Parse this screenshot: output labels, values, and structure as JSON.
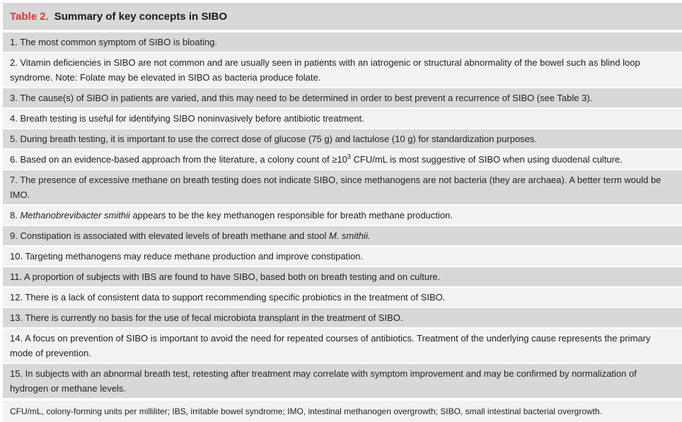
{
  "table": {
    "label": "Table 2.",
    "title": "Summary of key concepts in SIBO",
    "rows": [
      {
        "text": "1. The most common symptom of SIBO is bloating."
      },
      {
        "text": "2. Vitamin deficiencies in SIBO are not common and are usually seen in patients with an iatrogenic or structural abnormality of the bowel such as blind loop syndrome. Note: Folate may be elevated in SIBO as bacteria produce folate."
      },
      {
        "text": "3. The cause(s) of SIBO in patients are varied, and this may need to be determined in order to best prevent a recurrence of SIBO (see Table 3)."
      },
      {
        "text": "4. Breath testing is useful for identifying SIBO noninvasively before antibiotic treatment."
      },
      {
        "text": "5. During breath testing, it is important to use the correct dose of glucose (75 g) and lactulose (10 g) for standardization purposes."
      },
      {
        "before": "6. Based on an evidence-based approach from the literature, a colony count of ≥10",
        "sup": "3",
        "after": " CFU/mL is most suggestive of SIBO when using duodenal culture."
      },
      {
        "text": "7. The presence of excessive methane on breath testing does not indicate SIBO, since methanogens are not bacteria (they are archaea). A better term would be IMO."
      },
      {
        "before": "8. ",
        "italic": "Methanobrevibacter smithii",
        "after": " appears to be the key methanogen responsible for breath methane production."
      },
      {
        "before": "9. Constipation is associated with elevated levels of breath methane and stool ",
        "italic": "M. smithii.",
        "after": ""
      },
      {
        "text": "10. Targeting methanogens may reduce methane production and improve constipation."
      },
      {
        "text": "11. A proportion of subjects with IBS are found to have SIBO, based both on breath testing and on culture."
      },
      {
        "text": "12. There is a lack of consistent data to support recommending specific probiotics in the treatment of SIBO."
      },
      {
        "text": "13. There is currently no basis for the use of fecal microbiota transplant in the treatment of SIBO."
      },
      {
        "text": "14. A focus on prevention of SIBO is important to avoid the need for repeated courses of antibiotics. Treatment of the underlying cause represents the primary mode of prevention."
      },
      {
        "text": "15. In subjects with an abnormal breath test, retesting after treatment may correlate with symptom improvement and may be confirmed by normalization of hydrogen or methane levels."
      }
    ],
    "footnote": "CFU/mL, colony-forming units per milliliter; IBS, irritable bowel syndrome; IMO, intestinal methanogen overgrowth; SIBO, small intestinal bacterial overgrowth."
  }
}
